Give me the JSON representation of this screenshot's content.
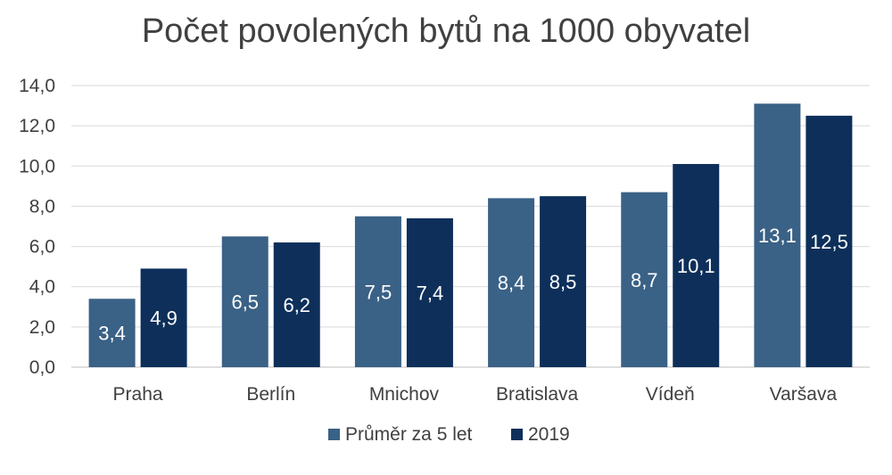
{
  "chart_data": {
    "type": "bar",
    "title": "Počet povolených bytů na 1000 obyvatel",
    "categories": [
      "Praha",
      "Berlín",
      "Mnichov",
      "Bratislava",
      "Vídeň",
      "Varšava"
    ],
    "series": [
      {
        "name": "Průměr za 5 let",
        "color": "#3a6186",
        "values": [
          3.4,
          6.5,
          7.5,
          8.4,
          8.7,
          13.1
        ],
        "labels": [
          "3,4",
          "6,5",
          "7,5",
          "8,4",
          "8,7",
          "13,1"
        ]
      },
      {
        "name": "2019",
        "color": "#0d2f5a",
        "values": [
          4.9,
          6.2,
          7.4,
          8.5,
          10.1,
          12.5
        ],
        "labels": [
          "4,9",
          "6,2",
          "7,4",
          "8,5",
          "10,1",
          "12,5"
        ]
      }
    ],
    "ylim": [
      0,
      14
    ],
    "yticks": [
      0,
      2,
      4,
      6,
      8,
      10,
      12,
      14
    ],
    "ytick_labels": [
      "0,0",
      "2,0",
      "4,0",
      "6,0",
      "8,0",
      "10,0",
      "12,0",
      "14,0"
    ],
    "grid": true,
    "legend_position": "bottom"
  }
}
